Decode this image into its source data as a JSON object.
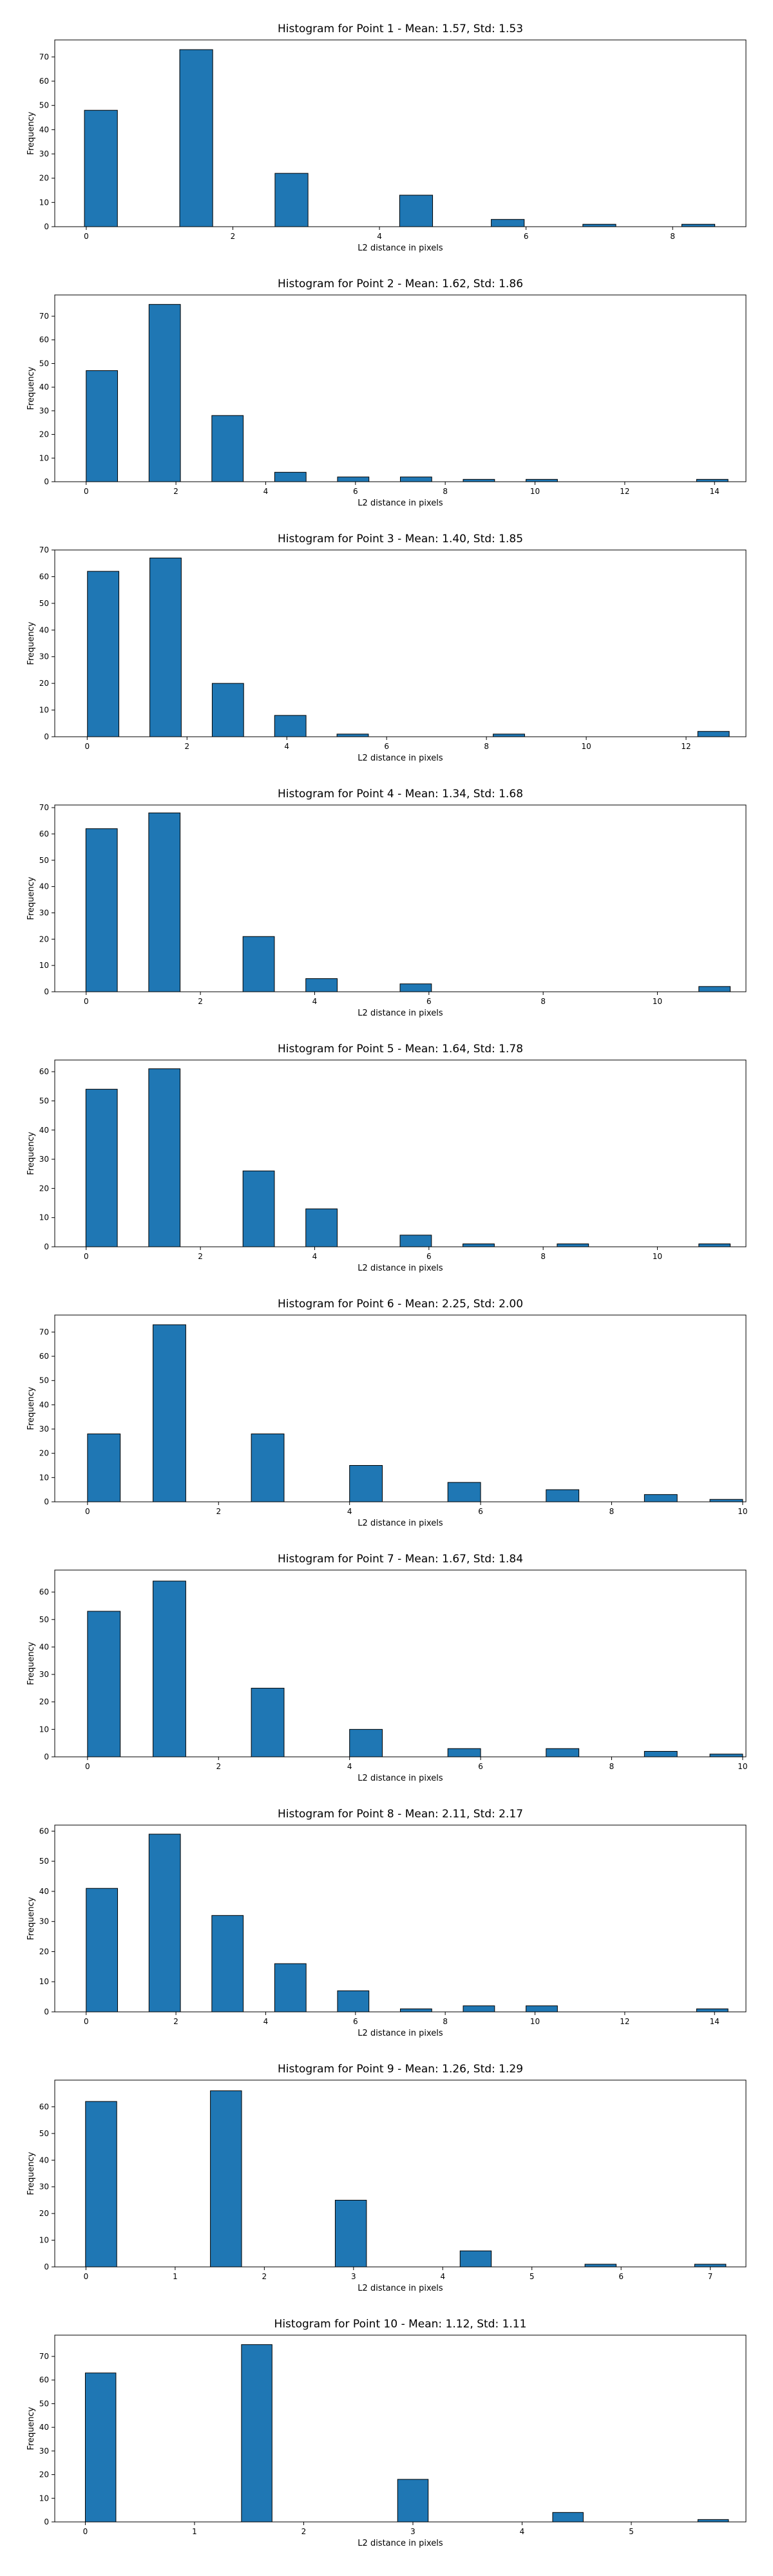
{
  "chart_data": [
    {
      "type": "bar",
      "title": "Histogram for Point 1 - Mean: 1.57, Std: 1.53",
      "xlabel": "L2 distance in pixels",
      "ylabel": "Frequency",
      "xlim": [
        -0.43,
        9.0
      ],
      "ylim": [
        0,
        77
      ],
      "xticks": [
        0,
        2,
        4,
        6,
        8
      ],
      "yticks": [
        0,
        10,
        20,
        30,
        40,
        50,
        60,
        70
      ],
      "bar_width": 0.45,
      "x": [
        0.2,
        1.5,
        2.8,
        4.5,
        5.75,
        7.0,
        8.35
      ],
      "values": [
        48,
        73,
        22,
        13,
        3,
        1,
        1
      ]
    },
    {
      "type": "bar",
      "title": "Histogram for Point 2 - Mean: 1.62, Std: 1.86",
      "xlabel": "L2 distance in pixels",
      "ylabel": "Frequency",
      "xlim": [
        -0.7,
        14.7
      ],
      "ylim": [
        0,
        79
      ],
      "xticks": [
        0,
        2,
        4,
        6,
        8,
        10,
        12,
        14
      ],
      "yticks": [
        0,
        10,
        20,
        30,
        40,
        50,
        60,
        70
      ],
      "bar_width": 0.7,
      "x": [
        0.35,
        1.75,
        3.15,
        4.55,
        5.95,
        7.35,
        8.75,
        10.15,
        13.95
      ],
      "values": [
        47,
        75,
        28,
        4,
        2,
        2,
        1,
        1,
        1
      ]
    },
    {
      "type": "bar",
      "title": "Histogram for Point 3 - Mean: 1.40, Std: 1.85",
      "xlabel": "L2 distance in pixels",
      "ylabel": "Frequency",
      "xlim": [
        -0.65,
        13.2
      ],
      "ylim": [
        0,
        70
      ],
      "xticks": [
        0,
        2,
        4,
        6,
        8,
        10,
        12
      ],
      "yticks": [
        0,
        10,
        20,
        30,
        40,
        50,
        60,
        70
      ],
      "bar_width": 0.63,
      "x": [
        0.32,
        1.57,
        2.82,
        4.07,
        5.32,
        8.45,
        12.55
      ],
      "values": [
        62,
        67,
        20,
        8,
        1,
        1,
        2
      ]
    },
    {
      "type": "bar",
      "title": "Histogram for Point 4 - Mean: 1.34, Std: 1.68",
      "xlabel": "L2 distance in pixels",
      "ylabel": "Frequency",
      "xlim": [
        -0.55,
        11.55
      ],
      "ylim": [
        0,
        71
      ],
      "xticks": [
        0,
        2,
        4,
        6,
        8,
        10
      ],
      "yticks": [
        0,
        10,
        20,
        30,
        40,
        50,
        60,
        70
      ],
      "bar_width": 0.55,
      "x": [
        0.27,
        1.37,
        3.02,
        4.12,
        5.77,
        11.0
      ],
      "values": [
        62,
        68,
        21,
        5,
        3,
        2
      ]
    },
    {
      "type": "bar",
      "title": "Histogram for Point 5 - Mean: 1.64, Std: 1.78",
      "xlabel": "L2 distance in pixels",
      "ylabel": "Frequency",
      "xlim": [
        -0.55,
        11.55
      ],
      "ylim": [
        0,
        64
      ],
      "xticks": [
        0,
        2,
        4,
        6,
        8,
        10
      ],
      "yticks": [
        0,
        10,
        20,
        30,
        40,
        50,
        60
      ],
      "bar_width": 0.55,
      "x": [
        0.27,
        1.37,
        3.02,
        4.12,
        5.77,
        6.87,
        8.52,
        11.0
      ],
      "values": [
        54,
        61,
        26,
        13,
        4,
        1,
        1,
        1
      ]
    },
    {
      "type": "bar",
      "title": "Histogram for Point 6 - Mean: 2.25, Std: 2.00",
      "xlabel": "L2 distance in pixels",
      "ylabel": "Frequency",
      "xlim": [
        -0.5,
        10.05
      ],
      "ylim": [
        0,
        77
      ],
      "xticks": [
        0,
        2,
        4,
        6,
        8,
        10
      ],
      "yticks": [
        0,
        10,
        20,
        30,
        40,
        50,
        60,
        70
      ],
      "bar_width": 0.5,
      "x": [
        0.25,
        1.25,
        2.75,
        4.25,
        5.75,
        7.25,
        8.75,
        9.75
      ],
      "values": [
        28,
        73,
        28,
        15,
        8,
        5,
        3,
        1
      ]
    },
    {
      "type": "bar",
      "title": "Histogram for Point 7 - Mean: 1.67, Std: 1.84",
      "xlabel": "L2 distance in pixels",
      "ylabel": "Frequency",
      "xlim": [
        -0.5,
        10.05
      ],
      "ylim": [
        0,
        68
      ],
      "xticks": [
        0,
        2,
        4,
        6,
        8,
        10
      ],
      "yticks": [
        0,
        10,
        20,
        30,
        40,
        50,
        60
      ],
      "bar_width": 0.5,
      "x": [
        0.25,
        1.25,
        2.75,
        4.25,
        5.75,
        7.25,
        8.75,
        9.75
      ],
      "values": [
        53,
        64,
        25,
        10,
        3,
        3,
        2,
        1
      ]
    },
    {
      "type": "bar",
      "title": "Histogram for Point 8 - Mean: 2.11, Std: 2.17",
      "xlabel": "L2 distance in pixels",
      "ylabel": "Frequency",
      "xlim": [
        -0.7,
        14.7
      ],
      "ylim": [
        0,
        62
      ],
      "xticks": [
        0,
        2,
        4,
        6,
        8,
        10,
        12,
        14
      ],
      "yticks": [
        0,
        10,
        20,
        30,
        40,
        50,
        60
      ],
      "bar_width": 0.7,
      "x": [
        0.35,
        1.75,
        3.15,
        4.55,
        5.95,
        7.35,
        8.75,
        10.15,
        13.95
      ],
      "values": [
        41,
        59,
        32,
        16,
        7,
        1,
        2,
        2,
        1
      ]
    },
    {
      "type": "bar",
      "title": "Histogram for Point 9 - Mean: 1.26, Std: 1.29",
      "xlabel": "L2 distance in pixels",
      "ylabel": "Frequency",
      "xlim": [
        -0.35,
        7.4
      ],
      "ylim": [
        0,
        70
      ],
      "xticks": [
        0,
        1,
        2,
        3,
        4,
        5,
        6,
        7
      ],
      "yticks": [
        0,
        10,
        20,
        30,
        40,
        50,
        60
      ],
      "bar_width": 0.35,
      "x": [
        0.17,
        1.57,
        2.97,
        4.37,
        5.77,
        7.0
      ],
      "values": [
        62,
        66,
        25,
        6,
        1,
        1
      ]
    },
    {
      "type": "bar",
      "title": "Histogram for Point 10 - Mean: 1.12, Std: 1.11",
      "xlabel": "L2 distance in pixels",
      "ylabel": "Frequency",
      "xlim": [
        -0.28,
        6.05
      ],
      "ylim": [
        0,
        79
      ],
      "xticks": [
        0,
        1,
        2,
        3,
        4,
        5
      ],
      "yticks": [
        0,
        10,
        20,
        30,
        40,
        50,
        60,
        70
      ],
      "bar_width": 0.28,
      "x": [
        0.14,
        1.57,
        3.0,
        4.42,
        5.75
      ],
      "values": [
        63,
        75,
        18,
        4,
        1
      ]
    }
  ]
}
